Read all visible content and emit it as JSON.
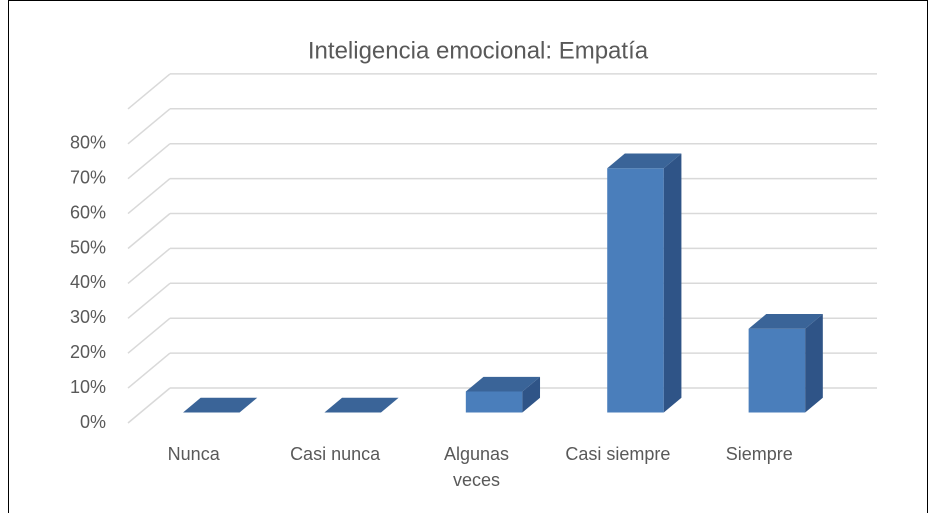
{
  "chart_data": {
    "type": "bar3d",
    "title": "Inteligencia emocional: Empatía",
    "categories": [
      "Nunca",
      "Casi nunca",
      "Algunas veces",
      "Casi siempre",
      "Siempre"
    ],
    "values": [
      0,
      0,
      6,
      70,
      24
    ],
    "color": "#4a7ebb",
    "ylim": [
      0,
      90
    ],
    "yticks": [
      {
        "value": 0,
        "label": "0%"
      },
      {
        "value": 10,
        "label": "10%"
      },
      {
        "value": 20,
        "label": "20%"
      },
      {
        "value": 30,
        "label": "30%"
      },
      {
        "value": 40,
        "label": "40%"
      },
      {
        "value": 50,
        "label": "50%"
      },
      {
        "value": 60,
        "label": "60%"
      },
      {
        "value": 70,
        "label": "70%"
      },
      {
        "value": 80,
        "label": "80%"
      }
    ],
    "grid": true
  }
}
